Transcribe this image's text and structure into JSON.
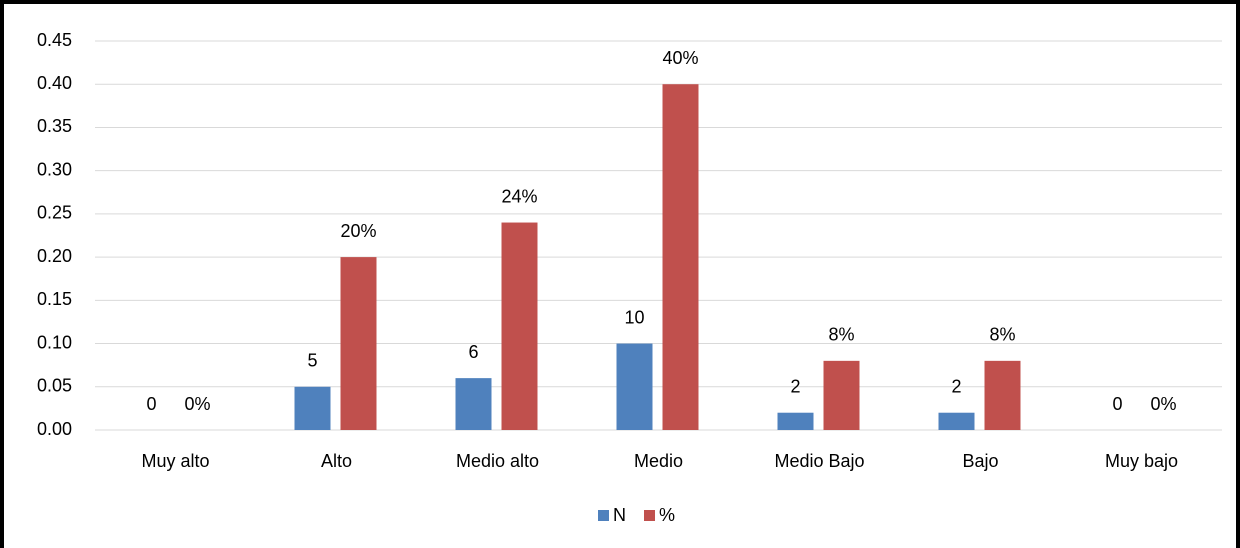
{
  "chart_data": {
    "type": "bar",
    "categories": [
      "Muy alto",
      "Alto",
      "Medio alto",
      "Medio",
      "Medio Bajo",
      "Bajo",
      "Muy bajo"
    ],
    "series": [
      {
        "name": "N",
        "color": "#4f81bd",
        "values": [
          0,
          0.05,
          0.06,
          0.1,
          0.02,
          0.02,
          0
        ],
        "value_labels": [
          "0",
          "5",
          "6",
          "10",
          "2",
          "2",
          "0"
        ]
      },
      {
        "name": "%",
        "color": "#c0504d",
        "values": [
          0,
          0.2,
          0.24,
          0.4,
          0.08,
          0.08,
          0
        ],
        "value_labels": [
          "0%",
          "20%",
          "24%",
          "40%",
          "8%",
          "8%",
          "0%"
        ]
      }
    ],
    "ylim": [
      0,
      0.45
    ],
    "yticks": [
      {
        "value": 0,
        "label": "0.00"
      },
      {
        "value": 0.05,
        "label": "0.05"
      },
      {
        "value": 0.1,
        "label": "0.10"
      },
      {
        "value": 0.15,
        "label": "0.15"
      },
      {
        "value": 0.2,
        "label": "0.20"
      },
      {
        "value": 0.25,
        "label": "0.25"
      },
      {
        "value": 0.3,
        "label": "0.30"
      },
      {
        "value": 0.35,
        "label": "0.35"
      },
      {
        "value": 0.4,
        "label": "0.40"
      },
      {
        "value": 0.45,
        "label": "0.45"
      }
    ],
    "grid": true,
    "legend": "bottom"
  }
}
